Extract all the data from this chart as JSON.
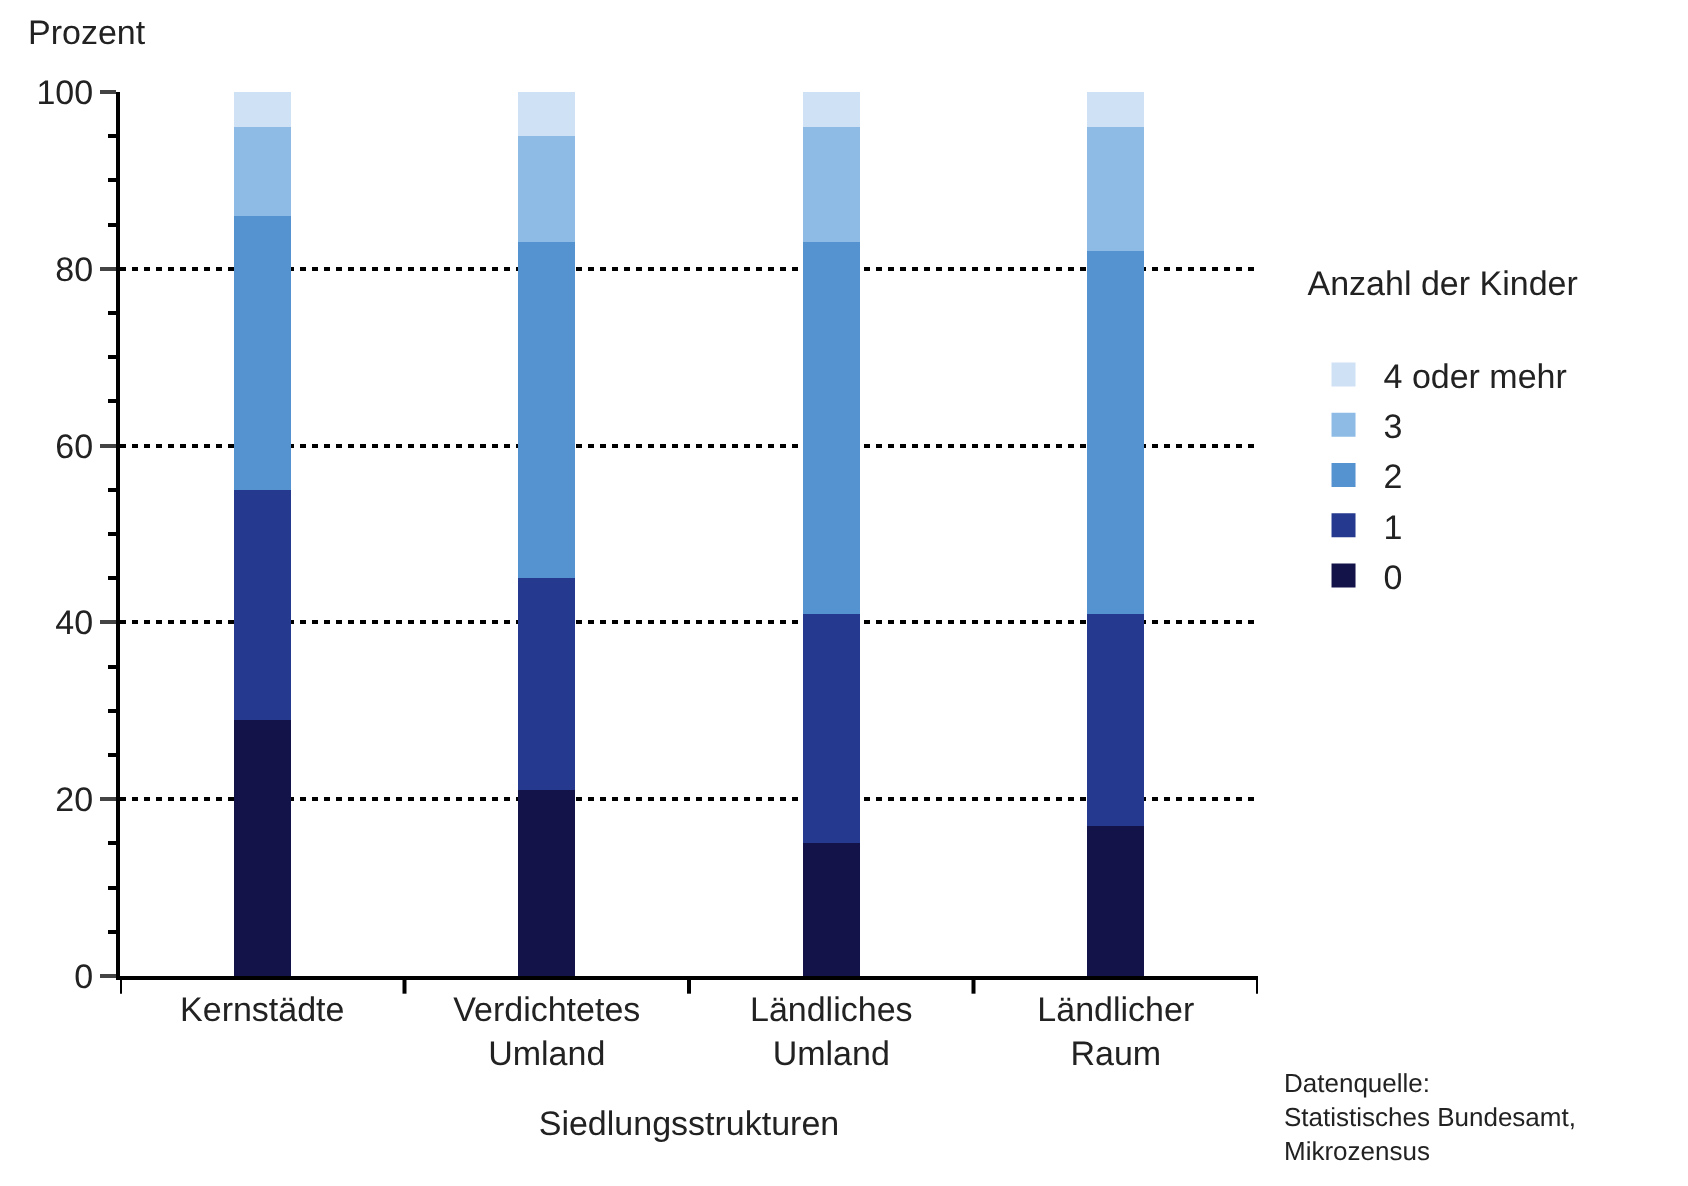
{
  "chart_data": {
    "type": "bar",
    "stacked": true,
    "categories": [
      "Kernstädte",
      "Verdichtetes Umland",
      "Ländliches Umland",
      "Ländlicher Raum"
    ],
    "series": [
      {
        "name": "0",
        "color": "#13134a",
        "values": [
          29,
          21,
          15,
          17
        ]
      },
      {
        "name": "1",
        "color": "#253a8e",
        "values": [
          26,
          24,
          26,
          24
        ]
      },
      {
        "name": "2",
        "color": "#5592d0",
        "values": [
          31,
          38,
          42,
          41
        ]
      },
      {
        "name": "3",
        "color": "#8dbbe6",
        "values": [
          10,
          12,
          13,
          14
        ]
      },
      {
        "name": "4 oder mehr",
        "color": "#cfe2f5",
        "values": [
          4,
          5,
          4,
          4
        ]
      }
    ],
    "ylabel": "Prozent",
    "xlabel": "Siedlungsstrukturen",
    "legend_title": "Anzahl der Kinder",
    "ylim": [
      0,
      100
    ],
    "yticks": [
      0,
      20,
      40,
      60,
      80,
      100
    ],
    "grid": "y",
    "legend": "right",
    "annotations": [
      "Datenquelle: Statistisches Bundesamt, Mikrozensus"
    ]
  }
}
